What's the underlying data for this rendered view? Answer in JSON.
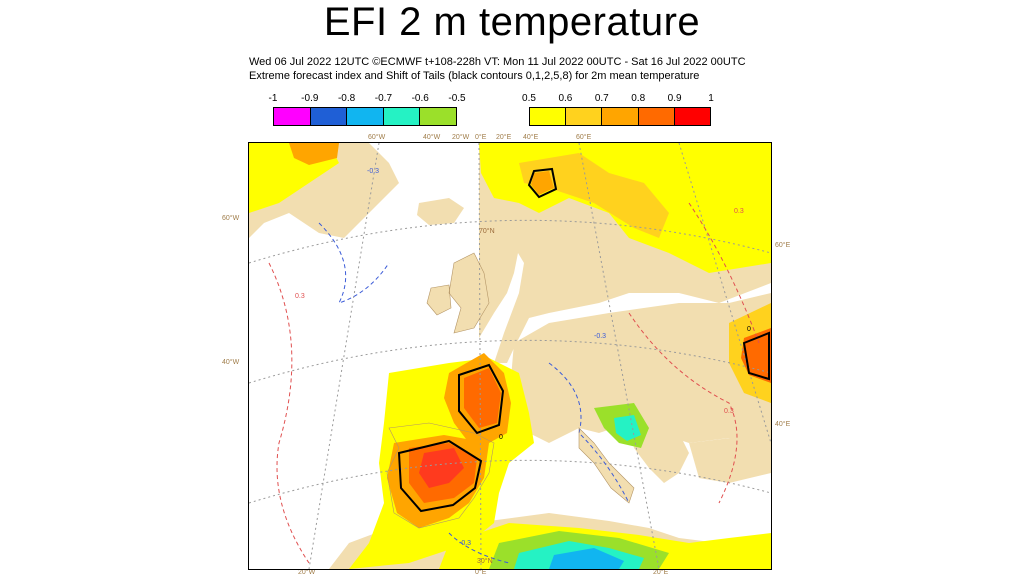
{
  "title": "EFI 2 m temperature",
  "subtitle_line1": "Wed 06 Jul 2022 12UTC ©ECMWF t+108-228h  VT: Mon 11 Jul 2022 00UTC - Sat 16 Jul 2022 00UTC",
  "subtitle_line2": "Extreme forecast index and Shift of Tails (black contours 0,1,2,5,8) for 2m mean temperature",
  "legend_negative": {
    "ticks": [
      "-1",
      "-0.9",
      "-0.8",
      "-0.7",
      "-0.6",
      "-0.5"
    ],
    "colors": [
      "#ff00ff",
      "#1f5fd6",
      "#11b5f0",
      "#25f2c4",
      "#9be02a"
    ]
  },
  "legend_positive": {
    "ticks": [
      "0.5",
      "0.6",
      "0.7",
      "0.8",
      "0.9",
      "1"
    ],
    "colors": [
      "#ffff00",
      "#ffd21e",
      "#ffa500",
      "#ff6a00",
      "#ff0000"
    ]
  },
  "map_colors": {
    "land": "#f2deb0",
    "sea": "#ffffff",
    "coast": "#b49566",
    "grid": "#9a9a9a",
    "contour_pos": "#e05050",
    "contour_neg": "#3c5cd8",
    "sot": "#000000"
  },
  "axis_labels": {
    "top": [
      "60°W",
      "40°W",
      "20°W",
      "0°E",
      "20°E",
      "40°E",
      "60°E"
    ],
    "left": [
      "60°W",
      "40°W"
    ],
    "right": [
      "60°E",
      "40°E"
    ],
    "bottom": [
      "20°W",
      "0°E",
      "20°E"
    ],
    "interior": [
      "70°N",
      "30°N"
    ]
  },
  "contour_labels": [
    "0.3",
    "-0.3",
    "0"
  ]
}
